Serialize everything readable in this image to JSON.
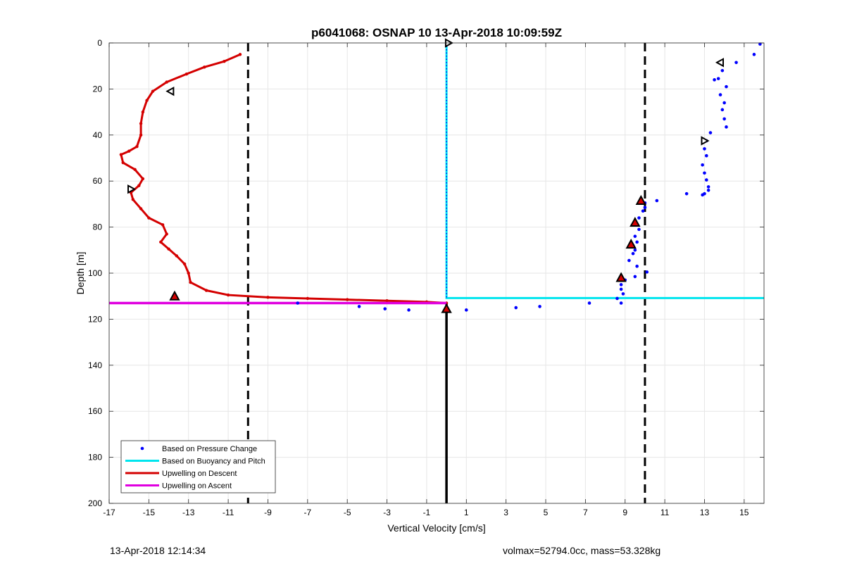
{
  "footer": {
    "left": "13-Apr-2018 12:14:34",
    "right": "volmax=52794.0cc, mass=53.328kg"
  },
  "chart_data": {
    "type": "scatter",
    "title": "p6041068: OSNAP 10 13-Apr-2018 10:09:59Z",
    "xlabel": "Vertical Velocity [cm/s]",
    "ylabel": "Depth [m]",
    "xlim": [
      -17,
      16
    ],
    "ylim": [
      0,
      200
    ],
    "y_reversed": true,
    "grid": true,
    "xticks": [
      -17,
      -15,
      -13,
      -11,
      -9,
      -7,
      -5,
      -3,
      -1,
      1,
      3,
      5,
      7,
      9,
      11,
      13,
      15
    ],
    "yticks": [
      0,
      20,
      40,
      60,
      80,
      100,
      120,
      140,
      160,
      180,
      200
    ],
    "legend_position": "bottom-left",
    "colors": {
      "pressure": "#0000ff",
      "buoyancy": "#00e5ee",
      "descent": "#d40000",
      "ascent": "#e000e0",
      "black": "#000000"
    },
    "series": [
      {
        "name": "Based on Pressure Change",
        "style": "points",
        "x": [
          15.8,
          15.5,
          14.6,
          13.9,
          13.7,
          13.5,
          14.1,
          13.8,
          14.0,
          13.9,
          14.0,
          14.1,
          13.3,
          13.1,
          13.0,
          13.1,
          12.9,
          13.0,
          13.1,
          13.2,
          13.2,
          13.0,
          12.9,
          12.1,
          10.6,
          10.0,
          10.0,
          9.9,
          9.7,
          9.6,
          9.7,
          9.5,
          9.6,
          9.4,
          9.5,
          9.4,
          9.2,
          9.6,
          10.1,
          9.5,
          9.0,
          8.8,
          8.8,
          8.9,
          8.6,
          8.8,
          7.2,
          4.7,
          3.5,
          1.0,
          -1.9,
          -3.1,
          -4.4,
          -7.5
        ],
        "y": [
          0.5,
          5,
          8.5,
          12,
          15.5,
          16,
          19,
          22.5,
          26,
          29,
          33,
          36.5,
          39,
          42.5,
          46,
          49,
          53,
          56.5,
          59.5,
          62.5,
          64,
          65.5,
          66,
          65.5,
          68.5,
          69.5,
          71.5,
          73,
          76,
          79,
          81,
          84,
          86.5,
          88,
          90,
          91.5,
          94.5,
          97,
          99.5,
          101.5,
          103,
          105,
          107,
          109,
          111,
          113,
          113,
          114.5,
          115,
          116,
          116,
          115.5,
          114.5,
          113
        ]
      },
      {
        "name": "Based on Buoyancy and Pitch",
        "style": "line",
        "x": [
          0,
          0,
          16
        ],
        "y": [
          0,
          110.8,
          110.8
        ]
      },
      {
        "name": "Upwelling on Descent",
        "style": "line-markers",
        "x": [
          -10.4,
          -11.2,
          -12.2,
          -13.1,
          -14.1,
          -14.8,
          -15.1,
          -15.3,
          -15.4,
          -15.4,
          -15.6,
          -16.0,
          -16.4,
          -16.3,
          -15.7,
          -15.3,
          -15.5,
          -15.9,
          -15.8,
          -15.4,
          -15.0,
          -14.3,
          -14.1,
          -14.4,
          -14.0,
          -13.6,
          -13.2,
          -13.0,
          -12.9,
          -12.1,
          -11.0,
          -9.0,
          -7.0,
          -5.0,
          -3.0,
          -1.0,
          0.0
        ],
        "y": [
          5,
          8,
          10.5,
          13.5,
          17,
          21,
          25,
          30,
          35,
          40,
          45,
          47,
          48.5,
          52,
          55,
          59,
          62,
          65,
          68,
          72,
          76,
          79,
          83,
          86.5,
          89.5,
          92.5,
          96,
          100,
          104,
          107.5,
          109.5,
          110.5,
          111,
          111.5,
          112,
          112.5,
          113
        ]
      },
      {
        "name": "Upwelling on Ascent",
        "style": "line",
        "x": [
          -17,
          0
        ],
        "y": [
          113,
          113
        ]
      }
    ],
    "reference_lines": {
      "dashed_x": [
        -10,
        10
      ],
      "solid_black_segment": {
        "x": 0,
        "y": [
          113,
          200
        ]
      }
    },
    "markers": {
      "red_triangles": {
        "x": [
          -13.7,
          9.8,
          9.5,
          9.3,
          8.8,
          0.0
        ],
        "y": [
          110,
          68.5,
          78,
          87.5,
          102,
          115.5
        ]
      },
      "left_open_triangles": {
        "x": [
          -13.9,
          13.8
        ],
        "y": [
          21,
          8.5
        ]
      },
      "right_open_triangles": {
        "x": [
          -15.9,
          0.1,
          13.0
        ],
        "y": [
          63.5,
          0,
          42.5
        ]
      }
    }
  }
}
